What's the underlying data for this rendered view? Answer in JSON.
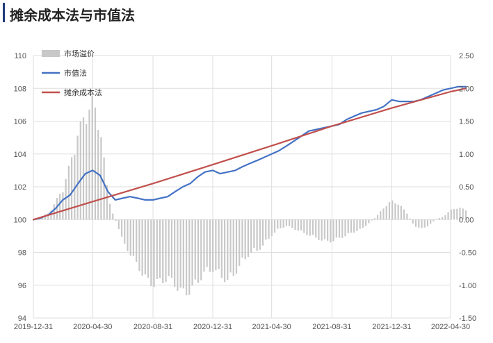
{
  "title": "摊余成本法与市值法",
  "colors": {
    "premium_bar": "#c8c8c8",
    "market_value": "#4472c4",
    "amortized_cost": "#c0504d",
    "grid": "#dedede",
    "title_accent": "#1f3a78"
  },
  "chart_data": {
    "type": "line",
    "title": "摊余成本法与市值法",
    "legend_position": "top-left",
    "grid": true,
    "x_tick_labels": [
      "2019-12-31",
      "2020-04-30",
      "2020-08-31",
      "2020-12-31",
      "2021-04-30",
      "2021-08-31",
      "2021-12-31",
      "2022-04-30"
    ],
    "y_left": {
      "range": [
        94,
        110
      ],
      "ticks": [
        "94",
        "96",
        "98",
        "100",
        "102",
        "104",
        "106",
        "108",
        "110"
      ]
    },
    "y_right": {
      "range": [
        -1.5,
        2.5
      ],
      "ticks": [
        "-1.50",
        "-1.00",
        "-0.50",
        "0.00",
        "0.50",
        "1.00",
        "1.50",
        "2.00",
        "2.50"
      ]
    },
    "series": [
      {
        "name": "市场溢价",
        "kind": "bar",
        "axis": "right",
        "points": [
          [
            "2019-12-31",
            0.0
          ],
          [
            "2020-01-15",
            0.05
          ],
          [
            "2020-01-31",
            0.1
          ],
          [
            "2020-02-15",
            0.3
          ],
          [
            "2020-02-29",
            0.5
          ],
          [
            "2020-03-15",
            0.9
          ],
          [
            "2020-03-31",
            1.4
          ],
          [
            "2020-04-15",
            1.7
          ],
          [
            "2020-04-30",
            1.9
          ],
          [
            "2020-05-15",
            1.5
          ],
          [
            "2020-05-31",
            0.4
          ],
          [
            "2020-06-10",
            0.1
          ],
          [
            "2020-06-20",
            -0.1
          ],
          [
            "2020-06-30",
            -0.35
          ],
          [
            "2020-07-15",
            -0.55
          ],
          [
            "2020-07-31",
            -0.75
          ],
          [
            "2020-08-15",
            -0.95
          ],
          [
            "2020-08-31",
            -1.05
          ],
          [
            "2020-09-15",
            -1.0
          ],
          [
            "2020-09-30",
            -0.95
          ],
          [
            "2020-10-15",
            -1.05
          ],
          [
            "2020-10-31",
            -1.2
          ],
          [
            "2020-11-15",
            -1.15
          ],
          [
            "2020-11-30",
            -1.0
          ],
          [
            "2020-12-15",
            -0.85
          ],
          [
            "2020-12-31",
            -0.8
          ],
          [
            "2021-01-15",
            -0.9
          ],
          [
            "2021-01-31",
            -1.0
          ],
          [
            "2021-02-15",
            -0.85
          ],
          [
            "2021-02-28",
            -0.7
          ],
          [
            "2021-03-15",
            -0.55
          ],
          [
            "2021-03-31",
            -0.5
          ],
          [
            "2021-04-15",
            -0.4
          ],
          [
            "2021-04-30",
            -0.25
          ],
          [
            "2021-05-15",
            -0.15
          ],
          [
            "2021-05-31",
            -0.1
          ],
          [
            "2021-06-15",
            -0.15
          ],
          [
            "2021-06-30",
            -0.2
          ],
          [
            "2021-07-15",
            -0.25
          ],
          [
            "2021-07-31",
            -0.3
          ],
          [
            "2021-08-15",
            -0.35
          ],
          [
            "2021-08-31",
            -0.35
          ],
          [
            "2021-09-15",
            -0.3
          ],
          [
            "2021-09-30",
            -0.25
          ],
          [
            "2021-10-15",
            -0.2
          ],
          [
            "2021-10-31",
            -0.15
          ],
          [
            "2021-11-15",
            -0.05
          ],
          [
            "2021-11-30",
            0.05
          ],
          [
            "2021-12-15",
            0.2
          ],
          [
            "2021-12-31",
            0.3
          ],
          [
            "2022-01-15",
            0.25
          ],
          [
            "2022-01-31",
            0.1
          ],
          [
            "2022-02-15",
            -0.1
          ],
          [
            "2022-02-28",
            -0.15
          ],
          [
            "2022-03-15",
            -0.1
          ],
          [
            "2022-03-31",
            0.0
          ],
          [
            "2022-04-15",
            0.05
          ],
          [
            "2022-04-30",
            0.15
          ],
          [
            "2022-05-15",
            0.2
          ],
          [
            "2022-05-31",
            0.15
          ]
        ]
      },
      {
        "name": "市值法",
        "kind": "line",
        "axis": "left",
        "points": [
          [
            "2019-12-31",
            100.0
          ],
          [
            "2020-01-15",
            100.1
          ],
          [
            "2020-01-31",
            100.3
          ],
          [
            "2020-02-15",
            100.7
          ],
          [
            "2020-02-29",
            101.2
          ],
          [
            "2020-03-15",
            101.5
          ],
          [
            "2020-03-31",
            102.2
          ],
          [
            "2020-04-15",
            102.8
          ],
          [
            "2020-04-30",
            103.0
          ],
          [
            "2020-05-15",
            102.7
          ],
          [
            "2020-05-31",
            101.7
          ],
          [
            "2020-06-15",
            101.2
          ],
          [
            "2020-06-30",
            101.3
          ],
          [
            "2020-07-15",
            101.4
          ],
          [
            "2020-07-31",
            101.3
          ],
          [
            "2020-08-15",
            101.2
          ],
          [
            "2020-08-31",
            101.2
          ],
          [
            "2020-09-15",
            101.3
          ],
          [
            "2020-09-30",
            101.4
          ],
          [
            "2020-10-15",
            101.7
          ],
          [
            "2020-10-31",
            102.0
          ],
          [
            "2020-11-15",
            102.2
          ],
          [
            "2020-11-30",
            102.6
          ],
          [
            "2020-12-15",
            102.9
          ],
          [
            "2020-12-31",
            103.0
          ],
          [
            "2021-01-15",
            102.8
          ],
          [
            "2021-01-31",
            102.9
          ],
          [
            "2021-02-15",
            103.0
          ],
          [
            "2021-02-28",
            103.2
          ],
          [
            "2021-03-15",
            103.4
          ],
          [
            "2021-03-31",
            103.6
          ],
          [
            "2021-04-15",
            103.8
          ],
          [
            "2021-04-30",
            104.0
          ],
          [
            "2021-05-15",
            104.2
          ],
          [
            "2021-05-31",
            104.5
          ],
          [
            "2021-06-15",
            104.8
          ],
          [
            "2021-06-30",
            105.1
          ],
          [
            "2021-07-15",
            105.4
          ],
          [
            "2021-07-31",
            105.5
          ],
          [
            "2021-08-15",
            105.6
          ],
          [
            "2021-08-31",
            105.7
          ],
          [
            "2021-09-15",
            105.8
          ],
          [
            "2021-09-30",
            106.1
          ],
          [
            "2021-10-15",
            106.3
          ],
          [
            "2021-10-31",
            106.5
          ],
          [
            "2021-11-15",
            106.6
          ],
          [
            "2021-11-30",
            106.7
          ],
          [
            "2021-12-15",
            106.9
          ],
          [
            "2021-12-31",
            107.3
          ],
          [
            "2022-01-15",
            107.2
          ],
          [
            "2022-01-31",
            107.2
          ],
          [
            "2022-02-15",
            107.2
          ],
          [
            "2022-02-28",
            107.3
          ],
          [
            "2022-03-15",
            107.5
          ],
          [
            "2022-03-31",
            107.7
          ],
          [
            "2022-04-15",
            107.9
          ],
          [
            "2022-04-30",
            108.0
          ],
          [
            "2022-05-15",
            108.1
          ],
          [
            "2022-05-31",
            108.1
          ]
        ]
      },
      {
        "name": "摊余成本法",
        "kind": "line",
        "axis": "left",
        "points": [
          [
            "2019-12-31",
            100.0
          ],
          [
            "2020-04-30",
            101.1
          ],
          [
            "2020-08-31",
            102.2
          ],
          [
            "2020-12-31",
            103.35
          ],
          [
            "2021-04-30",
            104.5
          ],
          [
            "2021-08-31",
            105.7
          ],
          [
            "2021-12-31",
            106.8
          ],
          [
            "2022-04-30",
            107.8
          ],
          [
            "2022-05-31",
            108.0
          ]
        ]
      }
    ]
  }
}
